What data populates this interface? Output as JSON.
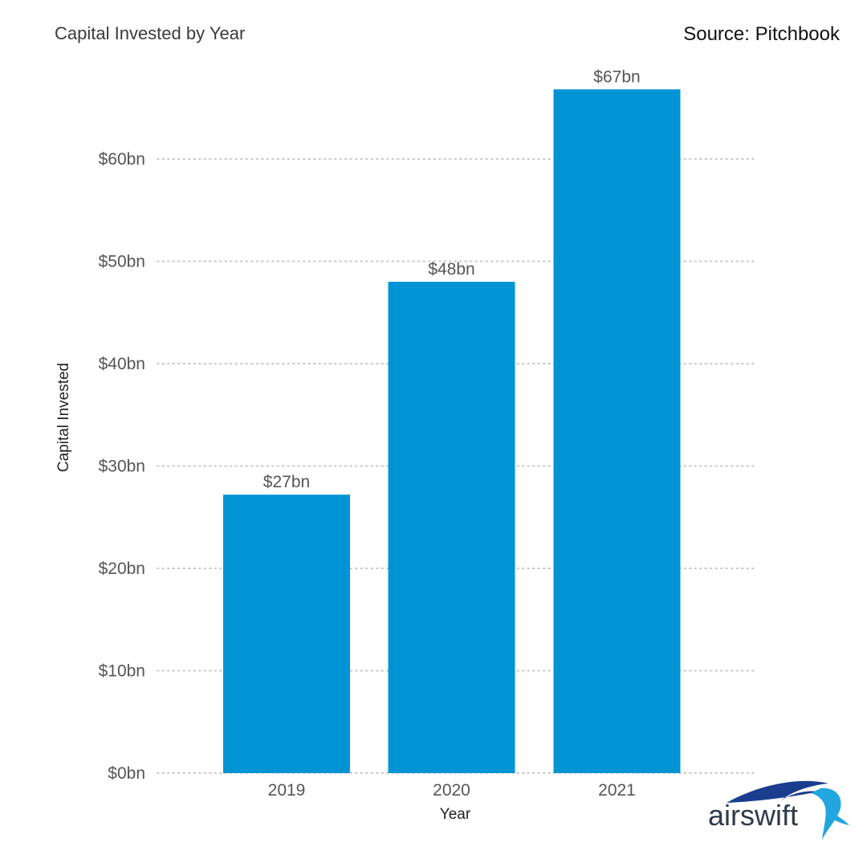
{
  "header": {
    "title": "Capital Invested by Year",
    "source": "Source: Pitchbook"
  },
  "brand": {
    "name": "airswift",
    "icon": "swift-bird-logo",
    "colors": [
      "#1b3d8f",
      "#22a6e0"
    ]
  },
  "chart_data": {
    "type": "bar",
    "title": "Capital Invested by Year",
    "xlabel": "Year",
    "ylabel": "Capital Invested",
    "categories": [
      "2019",
      "2020",
      "2021"
    ],
    "values": [
      27.2,
      48,
      66.8
    ],
    "data_labels": [
      "$27bn",
      "$48bn",
      "$67bn"
    ],
    "ylim": [
      0,
      70
    ],
    "yticks": [
      0,
      10,
      20,
      30,
      40,
      50,
      60
    ],
    "ytick_labels": [
      "$0bn",
      "$10bn",
      "$20bn",
      "$30bn",
      "$40bn",
      "$50bn",
      "$60bn"
    ],
    "grid": "horizontal dotted",
    "legend": "none",
    "bar_color": "#0094d4",
    "grid_color": "#c8c8c8"
  }
}
